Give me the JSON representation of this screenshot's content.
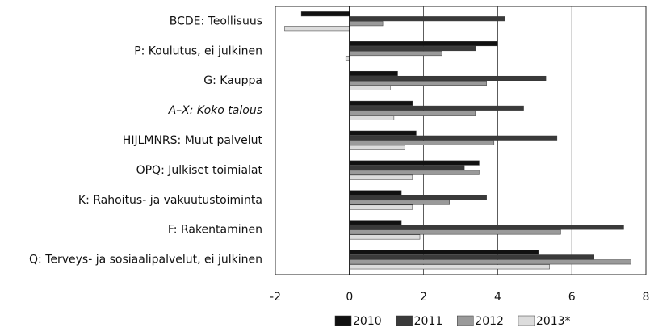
{
  "chart_data": {
    "type": "bar",
    "orientation": "horizontal",
    "categories": [
      "BCDE: Teollisuus",
      "P: Koulutus, ei julkinen",
      "G: Kauppa",
      "A–X: Koko talous",
      "HIJLMNRS: Muut palvelut",
      "OPQ: Julkiset toimialat",
      "K: Rahoitus- ja vakuutustoiminta",
      "F: Rakentaminen",
      "Q: Terveys- ja sosiaalipalvelut, ei julkinen"
    ],
    "series": [
      {
        "name": "2010",
        "color": "#111111",
        "values": [
          -1.3,
          4.0,
          1.3,
          1.7,
          1.8,
          3.5,
          1.4,
          1.4,
          5.1
        ]
      },
      {
        "name": "2011",
        "color": "#3a3a3a",
        "values": [
          4.2,
          3.4,
          5.3,
          4.7,
          5.6,
          3.1,
          3.7,
          7.4,
          6.6
        ]
      },
      {
        "name": "2012",
        "color": "#9a9a9a",
        "values": [
          0.9,
          2.5,
          3.7,
          3.4,
          3.9,
          3.5,
          2.7,
          5.7,
          7.6
        ]
      },
      {
        "name": "2013*",
        "color": "#dcdcdc",
        "values": [
          -1.75,
          -0.1,
          1.1,
          1.2,
          1.5,
          1.7,
          1.7,
          1.9,
          5.4
        ]
      }
    ],
    "xlim": [
      -2,
      8
    ],
    "xticks": [
      -2,
      0,
      2,
      4,
      6,
      8
    ],
    "grid": true,
    "legend": "bottom"
  }
}
